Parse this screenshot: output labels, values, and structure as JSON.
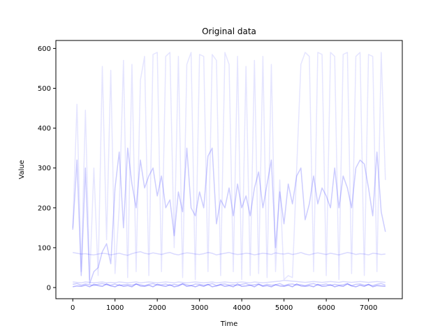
{
  "chart_data": {
    "type": "line",
    "title": "Original data",
    "xlabel": "Time",
    "ylabel": "Value",
    "xlim": [
      -400,
      7800
    ],
    "ylim": [
      -28,
      620
    ],
    "x_ticks": [
      0,
      1000,
      2000,
      3000,
      4000,
      5000,
      6000,
      7000
    ],
    "y_ticks": [
      0,
      100,
      200,
      300,
      400,
      500,
      600
    ],
    "grid": false,
    "legend": "none",
    "colors": {
      "line": "#0000ff",
      "axis": "#000000",
      "background": "#ffffff"
    },
    "series": [
      {
        "opacity": 0.1,
        "x": [
          0,
          100,
          200,
          300,
          400,
          500,
          600,
          700,
          800,
          900,
          1000,
          1100,
          1200,
          1300,
          1400,
          1500,
          1600,
          1700,
          1800,
          1900,
          2000,
          2100,
          2200,
          2300,
          2400,
          2500,
          2600,
          2700,
          2800,
          2900,
          3000,
          3100,
          3200,
          3300,
          3400,
          3500,
          3600,
          3700,
          3800,
          3900,
          4000,
          4100,
          4200,
          4300,
          4400,
          4500,
          4600,
          4700,
          4800,
          4900,
          5000,
          5100,
          5200,
          5300,
          5400,
          5500,
          5600,
          5700,
          5800,
          5900,
          6000,
          6100,
          6200,
          6300,
          6400,
          6500,
          6600,
          6700,
          6800,
          6900,
          7000,
          7100,
          7200,
          7300,
          7400
        ],
        "values": [
          150,
          460,
          40,
          445,
          20,
          300,
          30,
          555,
          120,
          545,
          35,
          200,
          570,
          25,
          560,
          40,
          520,
          580,
          30,
          585,
          590,
          40,
          580,
          590,
          100,
          580,
          25,
          560,
          590,
          20,
          585,
          580,
          40,
          585,
          570,
          30,
          590,
          560,
          40,
          580,
          20,
          555,
          30,
          570,
          35,
          580,
          25,
          560,
          40,
          270,
          20,
          30,
          25,
          300,
          560,
          590,
          580,
          40,
          590,
          585,
          30,
          590,
          580,
          20,
          585,
          590,
          35,
          580,
          590,
          30,
          585,
          580,
          40,
          590,
          270
        ]
      },
      {
        "opacity": 0.2,
        "x": [
          0,
          100,
          200,
          300,
          400,
          500,
          600,
          700,
          800,
          900,
          1000,
          1100,
          1200,
          1300,
          1400,
          1500,
          1600,
          1700,
          1800,
          1900,
          2000,
          2100,
          2200,
          2300,
          2400,
          2500,
          2600,
          2700,
          2800,
          2900,
          3000,
          3100,
          3200,
          3300,
          3400,
          3500,
          3600,
          3700,
          3800,
          3900,
          4000,
          4100,
          4200,
          4300,
          4400,
          4500,
          4600,
          4700,
          4800,
          4900,
          5000,
          5100,
          5200,
          5300,
          5400,
          5500,
          5600,
          5700,
          5800,
          5900,
          6000,
          6100,
          6200,
          6300,
          6400,
          6500,
          6600,
          6700,
          6800,
          6900,
          7000,
          7100,
          7200,
          7300,
          7400
        ],
        "values": [
          145,
          320,
          30,
          300,
          10,
          40,
          50,
          90,
          110,
          60,
          250,
          340,
          150,
          350,
          260,
          200,
          320,
          250,
          280,
          300,
          230,
          280,
          200,
          220,
          130,
          240,
          190,
          350,
          200,
          180,
          240,
          200,
          330,
          350,
          160,
          220,
          200,
          250,
          180,
          260,
          200,
          230,
          180,
          250,
          290,
          200,
          260,
          320,
          100,
          240,
          160,
          260,
          210,
          280,
          300,
          170,
          210,
          280,
          210,
          250,
          230,
          200,
          300,
          200,
          280,
          250,
          200,
          300,
          320,
          310,
          250,
          180,
          340,
          190,
          140
        ]
      },
      {
        "opacity": 0.15,
        "x": [
          0,
          100,
          200,
          300,
          400,
          500,
          600,
          700,
          800,
          900,
          1000,
          1100,
          1200,
          1300,
          1400,
          1500,
          1600,
          1700,
          1800,
          1900,
          2000,
          2100,
          2200,
          2300,
          2400,
          2500,
          2600,
          2700,
          2800,
          2900,
          3000,
          3100,
          3200,
          3300,
          3400,
          3500,
          3600,
          3700,
          3800,
          3900,
          4000,
          4100,
          4200,
          4300,
          4400,
          4500,
          4600,
          4700,
          4800,
          4900,
          5000,
          5100,
          5200,
          5300,
          5400,
          5500,
          5600,
          5700,
          5800,
          5900,
          6000,
          6100,
          6200,
          6300,
          6400,
          6500,
          6600,
          6700,
          6800,
          6900,
          7000,
          7100,
          7200,
          7300,
          7400
        ],
        "values": [
          88,
          86,
          84,
          85,
          83,
          82,
          84,
          86,
          85,
          82,
          84,
          86,
          83,
          81,
          85,
          88,
          90,
          86,
          84,
          87,
          85,
          83,
          86,
          88,
          84,
          82,
          85,
          87,
          86,
          84,
          83,
          85,
          88,
          86,
          82,
          84,
          86,
          88,
          85,
          83,
          84,
          86,
          85,
          82,
          84,
          86,
          85,
          83,
          87,
          85,
          84,
          86,
          83,
          85,
          88,
          84,
          82,
          85,
          87,
          85,
          83,
          86,
          84,
          82,
          85,
          88,
          86,
          83,
          85,
          84,
          82,
          86,
          85,
          83,
          84
        ]
      },
      {
        "opacity": 0.2,
        "x": [
          0,
          100,
          200,
          300,
          400,
          500,
          600,
          700,
          800,
          900,
          1000,
          1100,
          1200,
          1300,
          1400,
          1500,
          1600,
          1700,
          1800,
          1900,
          2000,
          2100,
          2200,
          2300,
          2400,
          2500,
          2600,
          2700,
          2800,
          2900,
          3000,
          3100,
          3200,
          3300,
          3400,
          3500,
          3600,
          3700,
          3800,
          3900,
          4000,
          4100,
          4200,
          4300,
          4400,
          4500,
          4600,
          4700,
          4800,
          4900,
          5000,
          5100,
          5200,
          5300,
          5400,
          5500,
          5600,
          5700,
          5800,
          5900,
          6000,
          6100,
          6200,
          6300,
          6400,
          6500,
          6600,
          6700,
          6800,
          6900,
          7000,
          7100,
          7200,
          7300,
          7400
        ],
        "values": [
          8,
          10,
          6,
          9,
          7,
          5,
          8,
          10,
          7,
          6,
          9,
          5,
          7,
          8,
          6,
          9,
          7,
          5,
          8,
          10,
          6,
          7,
          9,
          5,
          8,
          6,
          10,
          7,
          5,
          9,
          8,
          6,
          7,
          10,
          5,
          8,
          9,
          6,
          7,
          5,
          8,
          10,
          6,
          7,
          9,
          5,
          8,
          6,
          7,
          10,
          5,
          8,
          9,
          6,
          7,
          5,
          8,
          10,
          6,
          7,
          9,
          5,
          8,
          6,
          7,
          10,
          5,
          8,
          9,
          6,
          7,
          5,
          8,
          10,
          6
        ]
      },
      {
        "opacity": 0.15,
        "x": [
          0,
          100,
          200,
          300,
          400,
          500,
          600,
          700,
          800,
          900,
          1000,
          1100,
          1200,
          1300,
          1400,
          1500,
          1600,
          1700,
          1800,
          1900,
          2000,
          2100,
          2200,
          2300,
          2400,
          2500,
          2600,
          2700,
          2800,
          2900,
          3000,
          3100,
          3200,
          3300,
          3400,
          3500,
          3600,
          3700,
          3800,
          3900,
          4000,
          4100,
          4200,
          4300,
          4400,
          4500,
          4600,
          4700,
          4800,
          4900,
          5000,
          5100,
          5200,
          5300,
          5400,
          5500,
          5600,
          5700,
          5800,
          5900,
          6000,
          6100,
          6200,
          6300,
          6400,
          6500,
          6600,
          6700,
          6800,
          6900,
          7000,
          7100,
          7200,
          7300,
          7400
        ],
        "values": [
          14,
          13,
          12,
          14,
          13,
          12,
          13,
          14,
          12,
          13,
          12,
          14,
          13,
          12,
          13,
          14,
          12,
          13,
          14,
          13,
          12,
          13,
          14,
          13,
          12,
          14,
          13,
          12,
          13,
          14,
          13,
          12,
          13,
          14,
          12,
          13,
          14,
          13,
          12,
          13,
          14,
          13,
          12,
          14,
          13,
          12,
          13,
          14,
          15,
          16,
          18,
          17,
          16,
          15,
          14,
          13,
          14,
          15,
          14,
          13,
          14,
          15,
          14,
          13,
          15,
          14,
          13,
          14,
          15,
          14,
          13,
          14,
          15,
          14,
          13
        ]
      },
      {
        "opacity": 0.3,
        "x": [
          0,
          100,
          200,
          300,
          400,
          500,
          600,
          700,
          800,
          900,
          1000,
          1100,
          1200,
          1300,
          1400,
          1500,
          1600,
          1700,
          1800,
          1900,
          2000,
          2100,
          2200,
          2300,
          2400,
          2500,
          2600,
          2700,
          2800,
          2900,
          3000,
          3100,
          3200,
          3300,
          3400,
          3500,
          3600,
          3700,
          3800,
          3900,
          4000,
          4100,
          4200,
          4300,
          4400,
          4500,
          4600,
          4700,
          4800,
          4900,
          5000,
          5100,
          5200,
          5300,
          5400,
          5500,
          5600,
          5700,
          5800,
          5900,
          6000,
          6100,
          6200,
          6300,
          6400,
          6500,
          6600,
          6700,
          6800,
          6900,
          7000,
          7100,
          7200,
          7300,
          7400
        ],
        "values": [
          2,
          4,
          3,
          6,
          2,
          8,
          5,
          3,
          9,
          4,
          2,
          7,
          3,
          5,
          2,
          9,
          4,
          3,
          6,
          2,
          8,
          5,
          3,
          7,
          2,
          4,
          9,
          3,
          5,
          2,
          6,
          3,
          8,
          2,
          4,
          7,
          3,
          5,
          2,
          9,
          3,
          4,
          6,
          2,
          8,
          3,
          5,
          2,
          7,
          4,
          3,
          6,
          2,
          9,
          4,
          3,
          5,
          2,
          8,
          3,
          4,
          7,
          2,
          5,
          3,
          9,
          4,
          2,
          6,
          3,
          8,
          2,
          5,
          4,
          3
        ]
      }
    ]
  }
}
